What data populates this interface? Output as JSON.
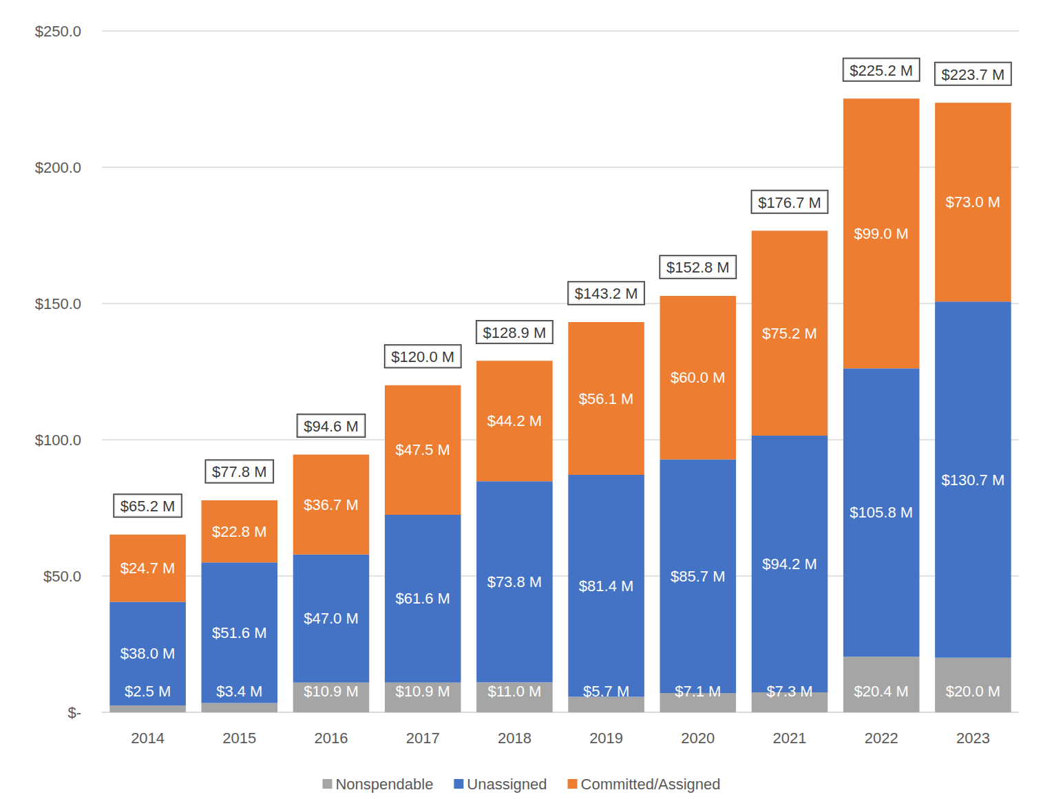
{
  "chart_data": {
    "type": "bar",
    "stacked": true,
    "data_labels": true,
    "grid": true,
    "legend": "bottom",
    "categories": [
      "2014",
      "2015",
      "2016",
      "2017",
      "2018",
      "2019",
      "2020",
      "2021",
      "2022",
      "2023"
    ],
    "ylim": [
      0,
      250
    ],
    "yticks": [
      {
        "value": 0,
        "label": "$-"
      },
      {
        "value": 50,
        "label": "$50.0"
      },
      {
        "value": 100,
        "label": "$100.0"
      },
      {
        "value": 150,
        "label": "$150.0"
      },
      {
        "value": 200,
        "label": "$200.0"
      },
      {
        "value": 250,
        "label": "$250.0"
      }
    ],
    "series": [
      {
        "name": "Nonspendable",
        "color": "#a5a5a5",
        "values": [
          2.5,
          3.4,
          10.9,
          10.9,
          11.0,
          5.7,
          7.1,
          7.3,
          20.4,
          20.0
        ],
        "value_labels": [
          "$2.5 M",
          "$3.4 M",
          "$10.9 M",
          "$10.9 M",
          "$11.0 M",
          "$5.7 M",
          "$7.1 M",
          "$7.3 M",
          "$20.4 M",
          "$20.0 M"
        ]
      },
      {
        "name": "Unassigned",
        "color": "#4472c4",
        "values": [
          38.0,
          51.6,
          47.0,
          61.6,
          73.8,
          81.4,
          85.7,
          94.2,
          105.8,
          130.7
        ],
        "value_labels": [
          "$38.0 M",
          "$51.6 M",
          "$47.0 M",
          "$61.6 M",
          "$73.8 M",
          "$81.4 M",
          "$85.7 M",
          "$94.2 M",
          "$105.8 M",
          "$130.7 M"
        ]
      },
      {
        "name": "Committed/Assigned",
        "color": "#ed7d31",
        "values": [
          24.7,
          22.8,
          36.7,
          47.5,
          44.2,
          56.1,
          60.0,
          75.2,
          99.0,
          73.0
        ],
        "value_labels": [
          "$24.7 M",
          "$22.8 M",
          "$36.7 M",
          "$47.5 M",
          "$44.2 M",
          "$56.1 M",
          "$60.0 M",
          "$75.2 M",
          "$99.0 M",
          "$73.0 M"
        ]
      }
    ],
    "totals": {
      "values": [
        65.2,
        77.8,
        94.6,
        120.0,
        128.9,
        143.2,
        152.8,
        176.7,
        225.2,
        223.7
      ],
      "value_labels": [
        "$65.2 M",
        "$77.8 M",
        "$94.6 M",
        "$120.0 M",
        "$128.9 M",
        "$143.2 M",
        "$152.8 M",
        "$176.7 M",
        "$225.2 M",
        "$223.7 M"
      ]
    }
  }
}
